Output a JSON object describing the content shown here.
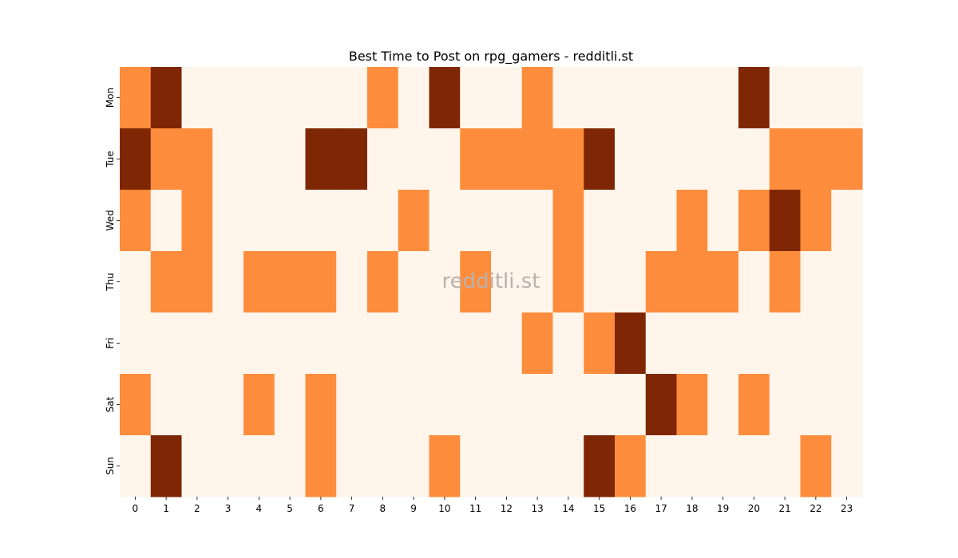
{
  "chart_data": {
    "type": "heatmap",
    "title": "Best Time to Post on rpg_gamers - redditli.st",
    "watermark": "redditli.st",
    "x": [
      0,
      1,
      2,
      3,
      4,
      5,
      6,
      7,
      8,
      9,
      10,
      11,
      12,
      13,
      14,
      15,
      16,
      17,
      18,
      19,
      20,
      21,
      22,
      23
    ],
    "y": [
      "Mon",
      "Tue",
      "Wed",
      "Thu",
      "Fri",
      "Sat",
      "Sun"
    ],
    "xlabel": "",
    "ylabel": "",
    "colorscale": [
      "#fff5eb",
      "#fd8d3c",
      "#7f2704"
    ],
    "levels": [
      0,
      1,
      2
    ],
    "values": [
      [
        1,
        2,
        0,
        0,
        0,
        0,
        0,
        0,
        1,
        0,
        2,
        0,
        0,
        1,
        0,
        0,
        0,
        0,
        0,
        0,
        2,
        0,
        0,
        0
      ],
      [
        2,
        1,
        1,
        0,
        0,
        0,
        2,
        2,
        0,
        0,
        0,
        1,
        1,
        1,
        1,
        2,
        0,
        0,
        0,
        0,
        0,
        1,
        1,
        1
      ],
      [
        1,
        0,
        1,
        0,
        0,
        0,
        0,
        0,
        0,
        1,
        0,
        0,
        0,
        0,
        1,
        0,
        0,
        0,
        1,
        0,
        1,
        2,
        1,
        0
      ],
      [
        0,
        1,
        1,
        0,
        1,
        1,
        1,
        0,
        1,
        0,
        0,
        1,
        0,
        0,
        1,
        0,
        0,
        1,
        1,
        1,
        0,
        1,
        0,
        0
      ],
      [
        0,
        0,
        0,
        0,
        0,
        0,
        0,
        0,
        0,
        0,
        0,
        0,
        0,
        1,
        0,
        1,
        2,
        0,
        0,
        0,
        0,
        0,
        0,
        0
      ],
      [
        1,
        0,
        0,
        0,
        1,
        0,
        1,
        0,
        0,
        0,
        0,
        0,
        0,
        0,
        0,
        0,
        0,
        2,
        1,
        0,
        1,
        0,
        0,
        0
      ],
      [
        0,
        2,
        0,
        0,
        0,
        0,
        1,
        0,
        0,
        0,
        1,
        0,
        0,
        0,
        0,
        2,
        1,
        0,
        0,
        0,
        0,
        0,
        1,
        0
      ]
    ]
  }
}
